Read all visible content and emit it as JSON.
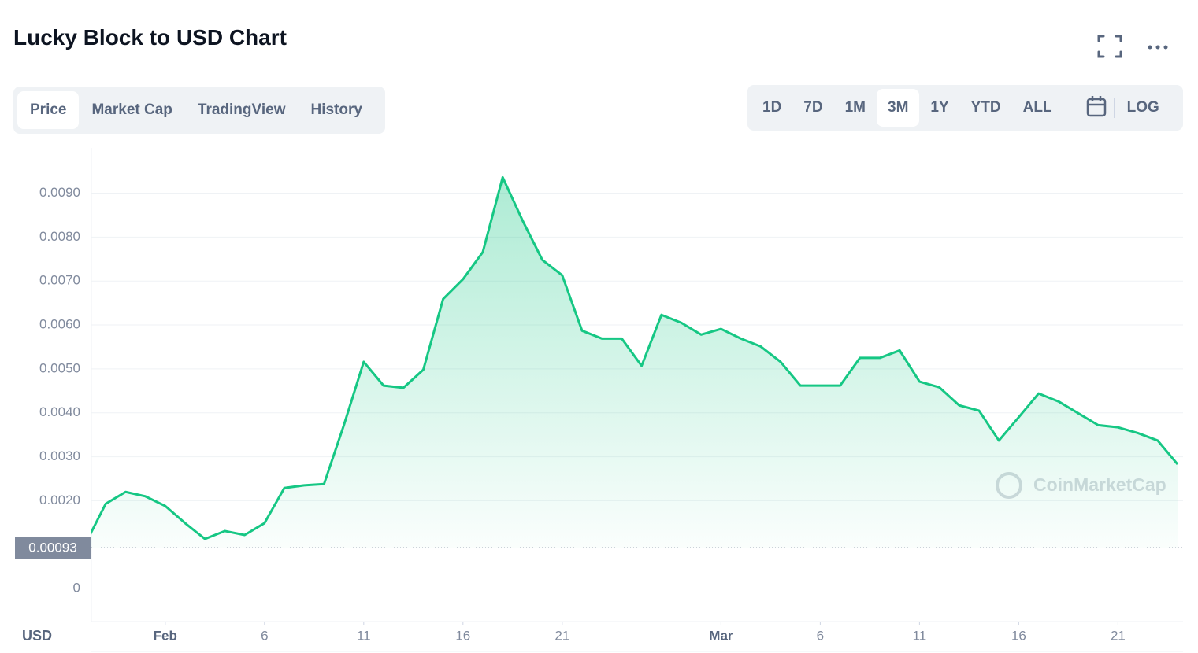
{
  "chart_data": {
    "type": "line",
    "title": "Lucky Block to USD Chart",
    "x": [
      "Jan 28",
      "Jan 29",
      "Jan 30",
      "Jan 31",
      "Feb 1",
      "Feb 2",
      "Feb 3",
      "Feb 4",
      "Feb 5",
      "Feb 6",
      "Feb 7",
      "Feb 8",
      "Feb 9",
      "Feb 10",
      "Feb 11",
      "Feb 12",
      "Feb 13",
      "Feb 14",
      "Feb 15",
      "Feb 16",
      "Feb 17",
      "Feb 18",
      "Feb 19",
      "Feb 20",
      "Feb 21",
      "Feb 22",
      "Feb 23",
      "Feb 24",
      "Feb 25",
      "Feb 26",
      "Feb 27",
      "Feb 28",
      "Mar 1",
      "Mar 2",
      "Mar 3",
      "Mar 4",
      "Mar 5",
      "Mar 6",
      "Mar 7",
      "Mar 8",
      "Mar 9",
      "Mar 10",
      "Mar 11",
      "Mar 12",
      "Mar 13",
      "Mar 14",
      "Mar 15",
      "Mar 16",
      "Mar 17",
      "Mar 18",
      "Mar 19",
      "Mar 20",
      "Mar 21",
      "Mar 22",
      "Mar 23",
      "Mar 24"
    ],
    "series": [
      {
        "color": "#16c784",
        "values": [
          0.00104,
          0.00193,
          0.0022,
          0.0021,
          0.00188,
          0.00149,
          0.00113,
          0.00131,
          0.00122,
          0.00149,
          0.00229,
          0.00235,
          0.00238,
          0.00372,
          0.00516,
          0.00462,
          0.00457,
          0.00498,
          0.00659,
          0.00704,
          0.00766,
          0.00936,
          0.00838,
          0.00748,
          0.00713,
          0.00587,
          0.00569,
          0.00569,
          0.00507,
          0.00623,
          0.00605,
          0.00578,
          0.00591,
          0.00569,
          0.00551,
          0.00516,
          0.00462,
          0.00462,
          0.00462,
          0.00525,
          0.00525,
          0.00542,
          0.00471,
          0.00458,
          0.00417,
          0.00405,
          0.00337,
          0.0039,
          0.00444,
          0.00426,
          0.00399,
          0.00372,
          0.00367,
          0.00354,
          0.00337,
          0.00283
        ]
      }
    ],
    "ylim": [
      -0.00075,
      0.01003
    ],
    "yticks": [
      0,
      {
        "value": 0.002,
        "label": "0.0020"
      },
      {
        "value": 0.003,
        "label": "0.0030"
      },
      {
        "value": 0.004,
        "label": "0.0040"
      },
      {
        "value": 0.005,
        "label": "0.0050"
      },
      {
        "value": 0.006,
        "label": "0.0060"
      },
      {
        "value": 0.007,
        "label": "0.0070"
      },
      {
        "value": 0.008,
        "label": "0.0080"
      },
      {
        "value": 0.009,
        "label": "0.0090"
      }
    ],
    "xticks": [
      {
        "value": "Feb 1",
        "label": "Feb"
      },
      {
        "value": "Feb 6",
        "label": "6"
      },
      {
        "value": "Feb 11",
        "label": "11"
      },
      {
        "value": "Feb 16",
        "label": "16"
      },
      {
        "value": "Feb 21",
        "label": "21"
      },
      {
        "value": "Mar 1",
        "label": "Mar"
      },
      {
        "value": "Mar 6",
        "label": "6"
      },
      {
        "value": "Mar 11",
        "label": "11"
      },
      {
        "value": "Mar 16",
        "label": "16"
      },
      {
        "value": "Mar 21",
        "label": "21"
      }
    ],
    "price_label": {
      "value": 0.00093,
      "label": "0.00093"
    },
    "currency": "USD",
    "watermark": "CoinMarketCap",
    "grid": true
  },
  "tabs": [
    {
      "label": "Price",
      "selected": true
    },
    {
      "label": "Market Cap"
    },
    {
      "label": "TradingView"
    },
    {
      "label": "History"
    }
  ],
  "ranges": [
    {
      "label": "1D"
    },
    {
      "label": "7D"
    },
    {
      "label": "1M"
    },
    {
      "label": "3M",
      "selected": true
    },
    {
      "label": "1Y"
    },
    {
      "label": "YTD"
    },
    {
      "label": "ALL"
    }
  ],
  "log_button": "LOG"
}
